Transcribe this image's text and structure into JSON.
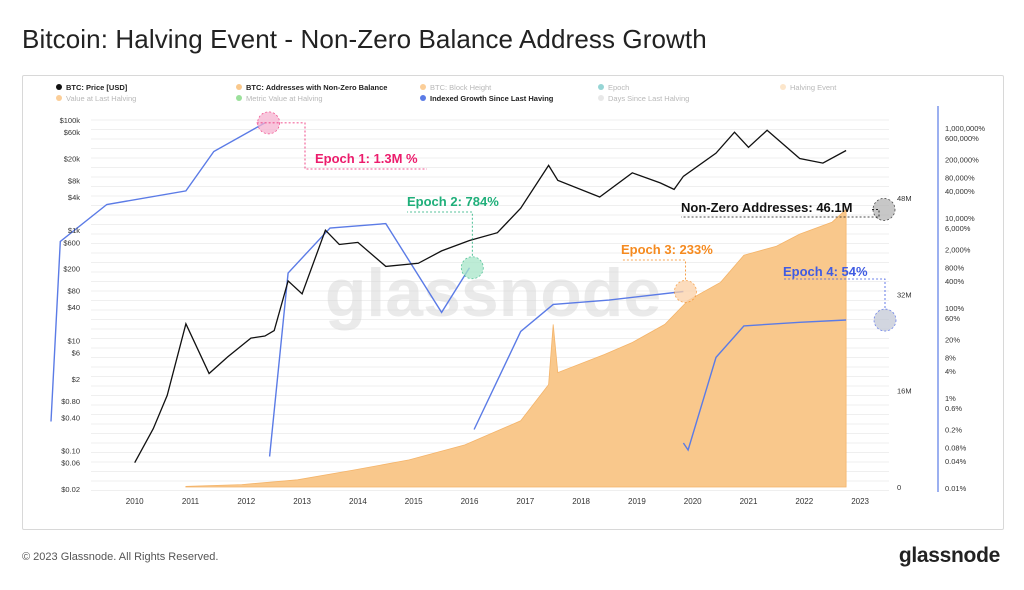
{
  "title": "Bitcoin: Halving Event - Non-Zero Balance Address Growth",
  "footer": {
    "copyright": "© 2023 Glassnode. All Rights Reserved.",
    "brand": "glassnode"
  },
  "watermark": "glassnode",
  "legend": [
    {
      "label": "BTC: Price [USD]",
      "color": "#111111",
      "active": true
    },
    {
      "label": "BTC: Addresses with Non-Zero Balance",
      "color": "#f9c88c",
      "active": true
    },
    {
      "label": "BTC: Block Height",
      "color": "#f7931a",
      "active": false
    },
    {
      "label": "Epoch",
      "color": "#17a2a2",
      "active": false
    },
    {
      "label": "Halving Event",
      "color": "#f9c88c",
      "active": false
    },
    {
      "label": "Value at Last Halving",
      "color": "#f7931a",
      "active": false
    },
    {
      "label": "Metric Value at Halving",
      "color": "#22bb22",
      "active": false
    },
    {
      "label": "Indexed Growth Since Last Having",
      "color": "#5b7be6",
      "active": true
    },
    {
      "label": "Days Since Last Halving",
      "color": "#cccccc",
      "active": false
    }
  ],
  "chart_data": {
    "type": "line",
    "x_ticks": [
      "2010",
      "2011",
      "2012",
      "2013",
      "2014",
      "2015",
      "2016",
      "2017",
      "2018",
      "2019",
      "2020",
      "2021",
      "2022",
      "2023"
    ],
    "y_left": {
      "scale": "log",
      "ticks": [
        "$100k",
        "$60k",
        "$20k",
        "$8k",
        "$4k",
        "$1k",
        "$600",
        "$200",
        "$80",
        "$40",
        "$10",
        "$6",
        "$2",
        "$0.80",
        "$0.40",
        "$0.10",
        "$0.06",
        "$0.02"
      ]
    },
    "y_right_addresses": {
      "ticks": [
        "48M",
        "32M",
        "16M",
        "0"
      ]
    },
    "y_right_growth": {
      "scale": "log",
      "ticks": [
        "1,000,000%",
        "600,000%",
        "200,000%",
        "80,000%",
        "40,000%",
        "10,000%",
        "6,000%",
        "2,000%",
        "800%",
        "400%",
        "100%",
        "60%",
        "20%",
        "8%",
        "4%",
        "1%",
        "0.6%",
        "0.2%",
        "0.08%",
        "0.04%",
        "0.01%"
      ]
    },
    "series": [
      {
        "name": "BTC: Price [USD]",
        "color": "#111111",
        "points": [
          [
            "2010-07",
            0.06
          ],
          [
            "2010-11",
            0.25
          ],
          [
            "2011-02",
            1
          ],
          [
            "2011-06",
            20
          ],
          [
            "2011-11",
            2.5
          ],
          [
            "2012-03",
            5
          ],
          [
            "2012-08",
            11
          ],
          [
            "2012-11",
            12
          ],
          [
            "2013-01",
            15
          ],
          [
            "2013-04",
            120
          ],
          [
            "2013-07",
            70
          ],
          [
            "2013-12",
            1000
          ],
          [
            "2014-03",
            550
          ],
          [
            "2014-07",
            600
          ],
          [
            "2015-01",
            220
          ],
          [
            "2015-08",
            250
          ],
          [
            "2016-01",
            420
          ],
          [
            "2016-07",
            650
          ],
          [
            "2017-01",
            900
          ],
          [
            "2017-06",
            2500
          ],
          [
            "2017-12",
            15000
          ],
          [
            "2018-02",
            8000
          ],
          [
            "2018-11",
            4000
          ],
          [
            "2019-06",
            11000
          ],
          [
            "2019-12",
            7200
          ],
          [
            "2020-03",
            5500
          ],
          [
            "2020-05",
            9500
          ],
          [
            "2020-12",
            25000
          ],
          [
            "2021-04",
            60000
          ],
          [
            "2021-07",
            32000
          ],
          [
            "2021-11",
            65000
          ],
          [
            "2022-06",
            20000
          ],
          [
            "2022-11",
            16500
          ],
          [
            "2023-04",
            28000
          ]
        ]
      },
      {
        "name": "BTC: Addresses with Non-Zero Balance",
        "color": "#f9c88c",
        "points": [
          [
            "2011-06",
            0.1
          ],
          [
            "2012-06",
            0.4
          ],
          [
            "2013-06",
            1.2
          ],
          [
            "2014-06",
            2.8
          ],
          [
            "2015-06",
            4.5
          ],
          [
            "2016-06",
            7
          ],
          [
            "2017-06",
            11
          ],
          [
            "2017-12",
            17
          ],
          [
            "2018-01",
            27
          ],
          [
            "2018-02",
            19
          ],
          [
            "2018-12",
            22
          ],
          [
            "2019-06",
            24
          ],
          [
            "2020-01",
            27
          ],
          [
            "2020-06",
            31
          ],
          [
            "2021-01",
            34
          ],
          [
            "2021-06",
            38.5
          ],
          [
            "2022-01",
            40
          ],
          [
            "2022-06",
            42
          ],
          [
            "2023-01",
            44
          ],
          [
            "2023-04",
            46.1
          ]
        ]
      },
      {
        "name": "Indexed Growth Since Last Having",
        "color": "#5b7be6",
        "points": [
          [
            "2009-01",
            0.3
          ],
          [
            "2009-03",
            3000
          ],
          [
            "2010-01",
            20000
          ],
          [
            "2011-06",
            40000
          ],
          [
            "2011-12",
            300000
          ],
          [
            "2012-11",
            1300000
          ],
          [
            "2012-12",
            0.05
          ],
          [
            "2013-04",
            600
          ],
          [
            "2014-01",
            6000
          ],
          [
            "2015-01",
            7500
          ],
          [
            "2016-01",
            80
          ],
          [
            "2016-07",
            784
          ],
          [
            "2016-08",
            0.2
          ],
          [
            "2017-06",
            30
          ],
          [
            "2018-01",
            120
          ],
          [
            "2019-01",
            150
          ],
          [
            "2020-05",
            233
          ],
          [
            "2020-05",
            0.1
          ],
          [
            "2020-06",
            0.07
          ],
          [
            "2020-12",
            8
          ],
          [
            "2021-06",
            40
          ],
          [
            "2022-06",
            48
          ],
          [
            "2023-04",
            54
          ]
        ]
      }
    ],
    "annotations": [
      {
        "label": "Epoch 1: 1.3M %",
        "color": "#ec1c6c"
      },
      {
        "label": "Epoch 2: 784%",
        "color": "#1faf7a"
      },
      {
        "label": "Epoch 3: 233%",
        "color": "#f58a1f"
      },
      {
        "label": "Epoch 4: 54%",
        "color": "#3f5be3"
      },
      {
        "label": "Non-Zero Addresses: 46.1M",
        "color": "#111111"
      }
    ]
  }
}
